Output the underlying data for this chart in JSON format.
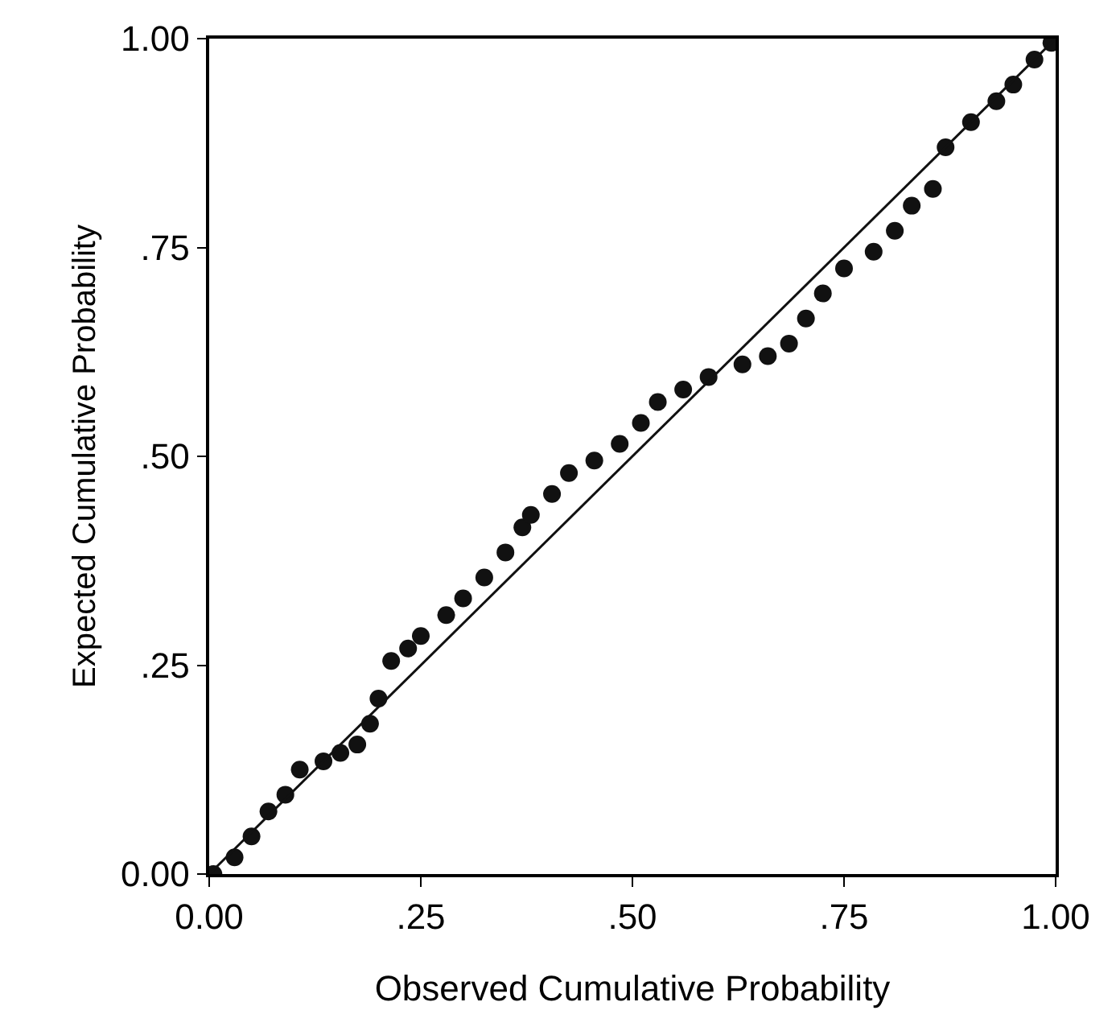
{
  "chart_data": {
    "type": "scatter",
    "xlabel": "Observed Cumulative Probability",
    "ylabel": "Expected Cumulative Probability",
    "xlim": [
      0,
      1
    ],
    "ylim": [
      0,
      1
    ],
    "xticks": [
      {
        "value": 0,
        "label": "0.00"
      },
      {
        "value": 0.25,
        "label": ".25"
      },
      {
        "value": 0.5,
        "label": ".50"
      },
      {
        "value": 0.75,
        "label": ".75"
      },
      {
        "value": 1,
        "label": "1.00"
      }
    ],
    "yticks": [
      {
        "value": 0,
        "label": "0.00"
      },
      {
        "value": 0.25,
        "label": ".25"
      },
      {
        "value": 0.5,
        "label": ".50"
      },
      {
        "value": 0.75,
        "label": ".75"
      },
      {
        "value": 1,
        "label": "1.00"
      }
    ],
    "series": [
      {
        "marker": "circle",
        "color": "#111111",
        "x": [
          0.005,
          0.03,
          0.05,
          0.07,
          0.09,
          0.107,
          0.135,
          0.155,
          0.175,
          0.19,
          0.2,
          0.215,
          0.235,
          0.25,
          0.28,
          0.3,
          0.325,
          0.35,
          0.37,
          0.38,
          0.405,
          0.425,
          0.455,
          0.485,
          0.51,
          0.53,
          0.56,
          0.59,
          0.63,
          0.66,
          0.685,
          0.705,
          0.725,
          0.75,
          0.785,
          0.81,
          0.83,
          0.855,
          0.87,
          0.9,
          0.93,
          0.95,
          0.975,
          0.995
        ],
        "values": [
          0.0,
          0.02,
          0.045,
          0.075,
          0.095,
          0.125,
          0.135,
          0.145,
          0.155,
          0.18,
          0.21,
          0.255,
          0.27,
          0.285,
          0.31,
          0.33,
          0.355,
          0.385,
          0.415,
          0.43,
          0.455,
          0.48,
          0.495,
          0.515,
          0.54,
          0.565,
          0.58,
          0.595,
          0.61,
          0.62,
          0.635,
          0.665,
          0.695,
          0.725,
          0.745,
          0.77,
          0.8,
          0.82,
          0.87,
          0.9,
          0.925,
          0.945,
          0.975,
          0.995
        ]
      },
      {
        "type": "line",
        "marker": "none",
        "color": "#111111",
        "x": [
          0,
          1
        ],
        "values": [
          0,
          1
        ]
      }
    ]
  }
}
